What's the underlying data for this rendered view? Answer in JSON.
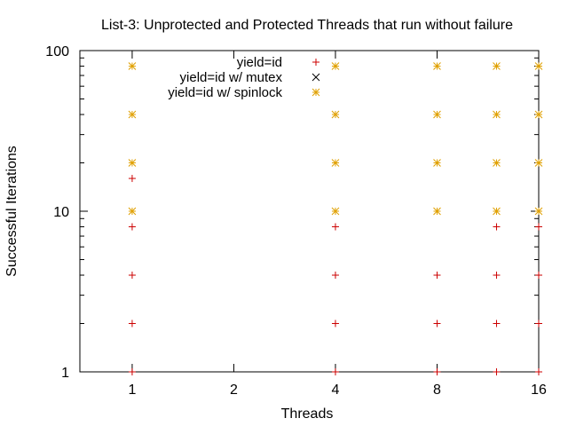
{
  "chart_data": {
    "type": "scatter",
    "title": "List-3: Unprotected and Protected Threads that run without failure",
    "xlabel": "Threads",
    "ylabel": "Successful Iterations",
    "x_scale": "log2",
    "y_scale": "log10",
    "xlim": [
      0.7,
      16
    ],
    "ylim": [
      1,
      100
    ],
    "x_ticks": [
      1,
      2,
      4,
      8,
      16
    ],
    "x_tick_labels": [
      "1",
      "2",
      "4",
      "8",
      "16"
    ],
    "y_ticks": [
      1,
      10,
      100
    ],
    "y_tick_labels": [
      "1",
      "10",
      "100"
    ],
    "grid": false,
    "legend_position": "top-right",
    "series": [
      {
        "name": "yield=id",
        "marker": "+",
        "color": "#cc0000",
        "points": [
          [
            1,
            1
          ],
          [
            1,
            2
          ],
          [
            1,
            4
          ],
          [
            1,
            8
          ],
          [
            1,
            16
          ],
          [
            4,
            1
          ],
          [
            4,
            2
          ],
          [
            4,
            4
          ],
          [
            4,
            8
          ],
          [
            8,
            1
          ],
          [
            8,
            2
          ],
          [
            8,
            4
          ],
          [
            12,
            1
          ],
          [
            12,
            2
          ],
          [
            12,
            4
          ],
          [
            12,
            8
          ],
          [
            16,
            1
          ],
          [
            16,
            2
          ],
          [
            16,
            4
          ],
          [
            16,
            8
          ]
        ]
      },
      {
        "name": "yield=id w/ mutex",
        "marker": "x",
        "color": "#000000",
        "points": []
      },
      {
        "name": "yield=id w/ spinlock",
        "marker": "*",
        "color": "#e0a000",
        "points": [
          [
            1,
            10
          ],
          [
            1,
            20
          ],
          [
            1,
            40
          ],
          [
            1,
            80
          ],
          [
            4,
            10
          ],
          [
            4,
            20
          ],
          [
            4,
            40
          ],
          [
            4,
            80
          ],
          [
            8,
            10
          ],
          [
            8,
            20
          ],
          [
            8,
            40
          ],
          [
            8,
            80
          ],
          [
            12,
            10
          ],
          [
            12,
            20
          ],
          [
            12,
            40
          ],
          [
            12,
            80
          ],
          [
            16,
            10
          ],
          [
            16,
            20
          ],
          [
            16,
            40
          ],
          [
            16,
            80
          ]
        ]
      }
    ]
  }
}
